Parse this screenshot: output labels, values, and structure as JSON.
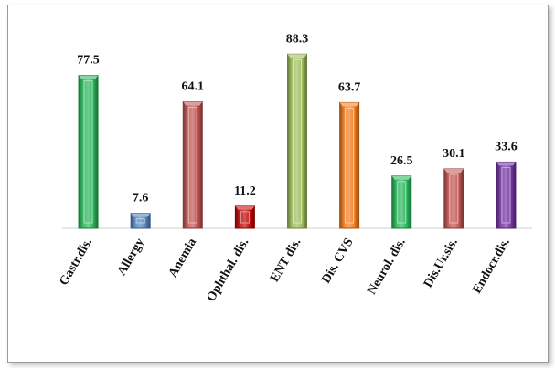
{
  "chart_data": {
    "type": "bar",
    "categories": [
      "Gastr.dis.",
      "Allergy",
      "Anemia",
      "Ophthal. dis.",
      "ENT dis.",
      "Dis. CVS",
      "Neurol. dis.",
      "Dis.Ur.sis.",
      "Endocr.dis."
    ],
    "values": [
      77.5,
      7.6,
      64.1,
      11.2,
      88.3,
      63.7,
      26.5,
      30.1,
      33.6
    ],
    "value_labels": [
      "77.5",
      "7.6",
      "64.1",
      "11.2",
      "88.3",
      "63.7",
      "26.5",
      "30.1",
      "33.6"
    ],
    "colors": [
      "#22b455",
      "#4f81bd",
      "#c0504d",
      "#c00000",
      "#9bbb59",
      "#f07818",
      "#22b455",
      "#c0504d",
      "#7030a0"
    ],
    "ylim": [
      0,
      100
    ],
    "grid": false,
    "legend": "none"
  }
}
